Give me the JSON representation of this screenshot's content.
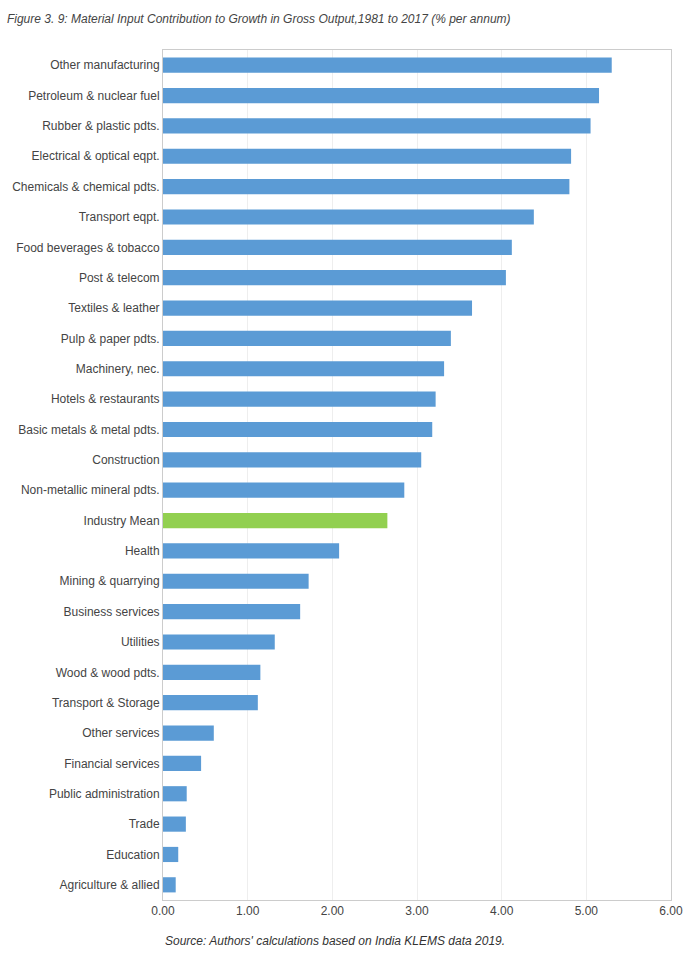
{
  "chart_data": {
    "type": "bar",
    "orientation": "horizontal",
    "title": "Figure 3. 9: Material Input Contribution to Growth in Gross Output,1981 to 2017 (% per annum)",
    "annotations": [
      "Source: Authors' calculations based on India KLEMS data 2019."
    ],
    "categories": [
      "Other manufacturing",
      "Petroleum & nuclear fuel",
      "Rubber & plastic pdts.",
      "Electrical & optical eqpt.",
      "Chemicals & chemical pdts.",
      "Transport eqpt.",
      "Food beverages & tobacco",
      "Post & telecom",
      "Textiles & leather",
      "Pulp & paper pdts.",
      "Machinery, nec.",
      "Hotels & restaurants",
      "Basic metals & metal pdts.",
      "Construction",
      "Non-metallic mineral pdts.",
      "Industry Mean",
      "Health",
      "Mining & quarrying",
      "Business services",
      "Utilities",
      "Wood & wood pdts.",
      "Transport & Storage",
      "Other services",
      "Financial services",
      "Public administration",
      "Trade",
      "Education",
      "Agriculture & allied"
    ],
    "values": [
      5.3,
      5.15,
      5.05,
      4.82,
      4.8,
      4.38,
      4.12,
      4.05,
      3.65,
      3.4,
      3.32,
      3.22,
      3.18,
      3.05,
      2.85,
      2.65,
      2.08,
      1.72,
      1.62,
      1.32,
      1.15,
      1.12,
      0.6,
      0.45,
      0.28,
      0.27,
      0.18,
      0.15
    ],
    "colors": [
      "#5B9BD5",
      "#5B9BD5",
      "#5B9BD5",
      "#5B9BD5",
      "#5B9BD5",
      "#5B9BD5",
      "#5B9BD5",
      "#5B9BD5",
      "#5B9BD5",
      "#5B9BD5",
      "#5B9BD5",
      "#5B9BD5",
      "#5B9BD5",
      "#5B9BD5",
      "#5B9BD5",
      "#92D050",
      "#5B9BD5",
      "#5B9BD5",
      "#5B9BD5",
      "#5B9BD5",
      "#5B9BD5",
      "#5B9BD5",
      "#5B9BD5",
      "#5B9BD5",
      "#5B9BD5",
      "#5B9BD5",
      "#5B9BD5",
      "#5B9BD5"
    ],
    "xlim": [
      0,
      6.0
    ],
    "xticks": [
      {
        "value": 0.0,
        "label": "0.00"
      },
      {
        "value": 1.0,
        "label": "1.00"
      },
      {
        "value": 2.0,
        "label": "2.00"
      },
      {
        "value": 3.0,
        "label": "3.00"
      },
      {
        "value": 4.0,
        "label": "4.00"
      },
      {
        "value": 5.0,
        "label": "5.00"
      },
      {
        "value": 6.0,
        "label": "6.00"
      }
    ],
    "grid": true
  }
}
